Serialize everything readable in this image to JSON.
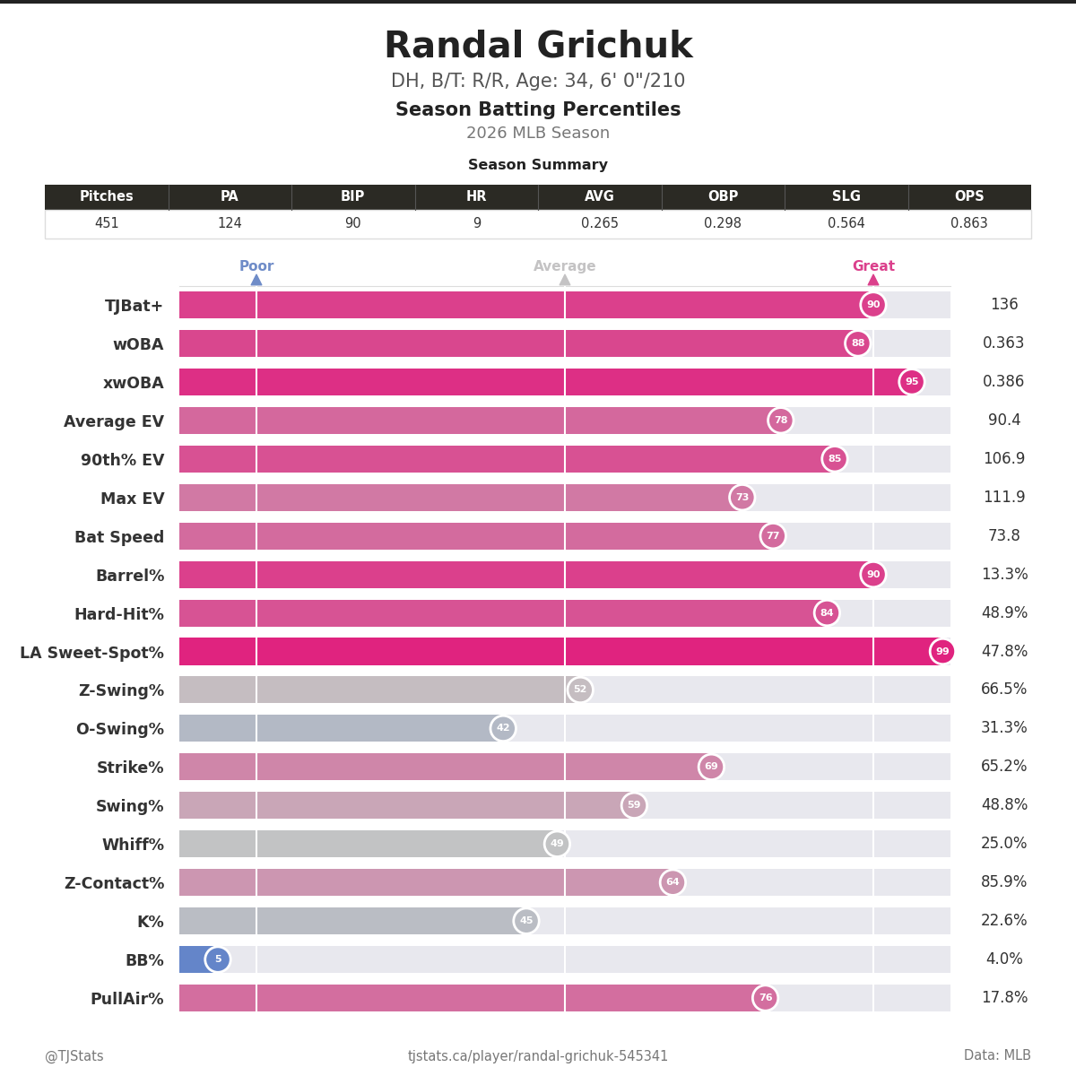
{
  "header": {
    "title": "Randal Grichuk",
    "subtitle": "DH, B/T: R/R, Age: 34, 6' 0\"/210",
    "heading": "Season Batting Percentiles",
    "season": "2026 MLB Season"
  },
  "season_summary": {
    "title": "Season Summary",
    "columns": [
      "Pitches",
      "PA",
      "BIP",
      "HR",
      "AVG",
      "OBP",
      "SLG",
      "OPS"
    ],
    "rows": [
      [
        "451",
        "124",
        "90",
        "9",
        "0.265",
        "0.298",
        "0.564",
        "0.863"
      ]
    ]
  },
  "chart_data": {
    "type": "bar",
    "orientation": "horizontal",
    "categories": [
      "TJBat+",
      "wOBA",
      "xwOBA",
      "Average EV",
      "90th% EV",
      "Max EV",
      "Bat Speed",
      "Barrel%",
      "Hard-Hit%",
      "LA Sweet-Spot%",
      "Z-Swing%",
      "O-Swing%",
      "Strike%",
      "Swing%",
      "Whiff%",
      "Z-Contact%",
      "K%",
      "BB%",
      "PullAir%"
    ],
    "values": [
      90,
      88,
      95,
      78,
      85,
      73,
      77,
      90,
      84,
      99,
      52,
      42,
      69,
      59,
      49,
      64,
      45,
      5,
      76
    ],
    "data_labels": true,
    "stat_values": [
      "136",
      "0.363",
      "0.386",
      "90.4",
      "106.9",
      "111.9",
      "73.8",
      "13.3%",
      "48.9%",
      "47.8%",
      "66.5%",
      "31.3%",
      "65.2%",
      "48.8%",
      "25.0%",
      "85.9%",
      "22.6%",
      "4.0%",
      "17.8%"
    ],
    "xlim": [
      0,
      100
    ],
    "xticks": [
      {
        "value": 10,
        "label": "Poor"
      },
      {
        "value": 50,
        "label": "Average"
      },
      {
        "value": 90,
        "label": "Great"
      }
    ],
    "grid": true
  },
  "footer": {
    "left": "@TJStats",
    "center": "tjstats.ca/player/randal-grichuk-545341",
    "right": "Data: MLB"
  }
}
